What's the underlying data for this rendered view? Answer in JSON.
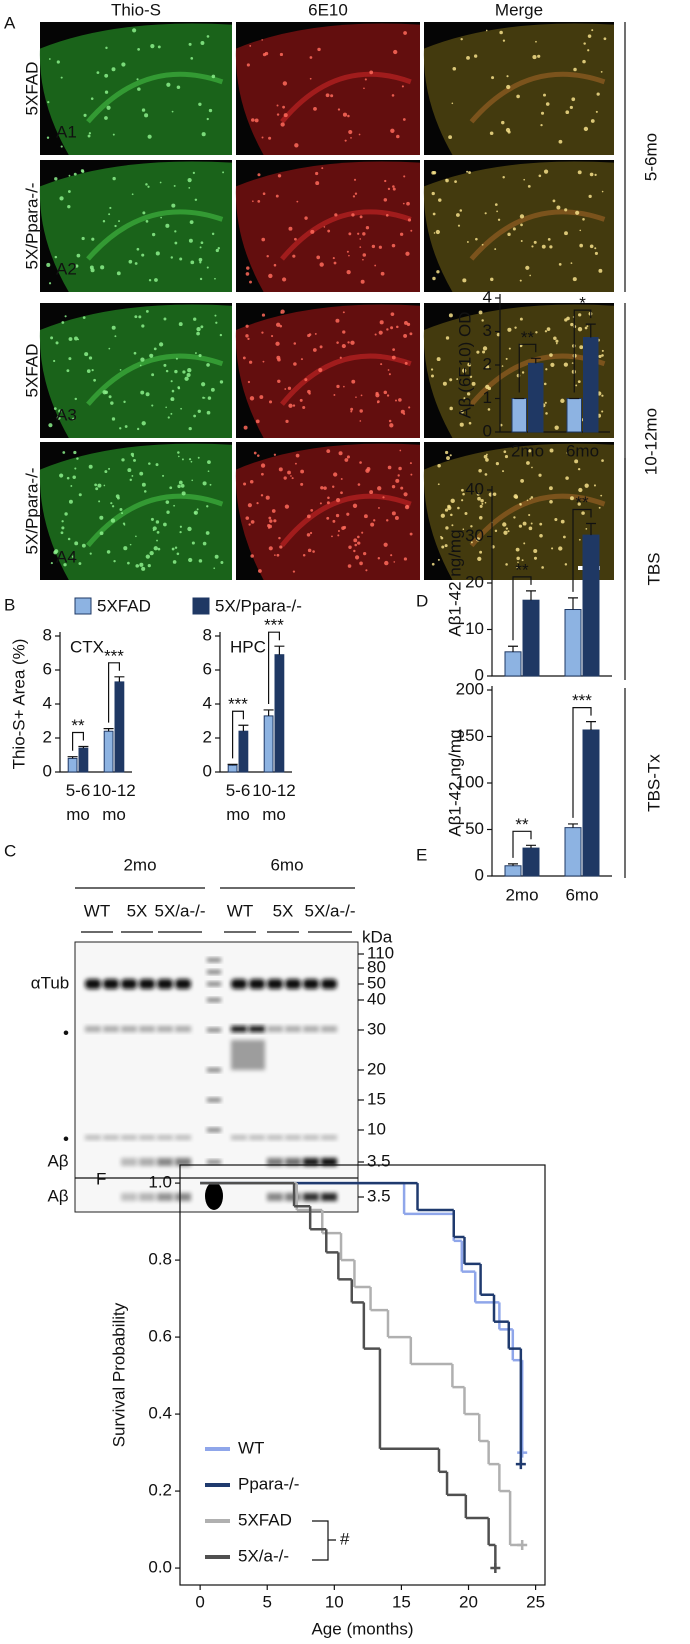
{
  "panel_a": {
    "label": "A",
    "columns": [
      "Thio-S",
      "6E10",
      "Merge"
    ],
    "rows": [
      {
        "genotype": "5XFAD",
        "id": "A1"
      },
      {
        "genotype": "5X/Ppara-/-",
        "id": "A2"
      },
      {
        "genotype": "5XFAD",
        "id": "A3"
      },
      {
        "genotype": "5X/Ppara-/-",
        "id": "A4"
      }
    ],
    "ages": [
      "5-6mo",
      "10-12mo"
    ]
  },
  "panel_c": {
    "label": "C",
    "ages": [
      "2mo",
      "6mo"
    ],
    "lanes": [
      "WT",
      "5X",
      "5X/a-/-",
      "WT",
      "5X",
      "5X/a-/-"
    ],
    "unit": "kDa",
    "markers": [
      "110",
      "80",
      "50",
      "40",
      "30",
      "20",
      "15",
      "10",
      "3.5",
      "3.5"
    ],
    "bands": [
      "αTub",
      "•",
      "•",
      "Aβ",
      "Aβ"
    ]
  },
  "labels": [
    "B",
    "D",
    "E",
    "F"
  ],
  "chart_data": [
    {
      "type": "bar",
      "title": "CTX",
      "ylabel": "Thio-S+ Area (%)",
      "categories": [
        "5-6 mo",
        "10-12 mo"
      ],
      "series": [
        {
          "name": "5XFAD",
          "color": "#8db3e2",
          "values": [
            0.8,
            2.4
          ],
          "errors": [
            0.1,
            0.15
          ]
        },
        {
          "name": "5X/Ppara-/-",
          "color": "#1f3864",
          "values": [
            1.4,
            5.3
          ],
          "errors": [
            0.1,
            0.3
          ]
        }
      ],
      "ylim": [
        0,
        8
      ],
      "yticks": [
        0,
        2,
        4,
        6,
        8
      ],
      "significance": [
        "**",
        "***"
      ]
    },
    {
      "type": "bar",
      "title": "HPC",
      "categories": [
        "5-6 mo",
        "10-12 mo"
      ],
      "series": [
        {
          "color": "#8db3e2",
          "values": [
            0.4,
            3.3
          ],
          "errors": [
            0.05,
            0.35
          ]
        },
        {
          "color": "#1f3864",
          "values": [
            2.4,
            6.9
          ],
          "errors": [
            0.35,
            0.5
          ]
        }
      ],
      "ylim": [
        0,
        8
      ],
      "yticks": [
        0,
        2,
        4,
        6,
        8
      ],
      "significance": [
        "***",
        "***"
      ]
    },
    {
      "type": "bar",
      "ylabel": "Aβ (6E10) OD",
      "categories": [
        "2mo",
        "6mo"
      ],
      "series": [
        {
          "color": "#8db3e2",
          "values": [
            1,
            1
          ],
          "errors": [
            0,
            0
          ]
        },
        {
          "color": "#1f3864",
          "values": [
            2.05,
            2.82
          ],
          "errors": [
            0.15,
            0.4
          ]
        }
      ],
      "ylim": [
        0,
        4
      ],
      "yticks": [
        0,
        1,
        2,
        3,
        4
      ],
      "significance": [
        "**",
        "*"
      ]
    },
    {
      "type": "bar",
      "ylabel": "Aβ1-42 ng/mg",
      "side": "TBS",
      "series": [
        {
          "color": "#8db3e2",
          "values": [
            5.2,
            14.3
          ],
          "errors": [
            1.2,
            2.5
          ]
        },
        {
          "color": "#1f3864",
          "values": [
            16.3,
            30.3
          ],
          "errors": [
            2,
            2.5
          ]
        }
      ],
      "ylim": [
        0,
        40
      ],
      "yticks": [
        0,
        10,
        20,
        30,
        40
      ],
      "significance": [
        "**",
        "**"
      ]
    },
    {
      "type": "bar",
      "ylabel": "Aβ1-42 ng/mg",
      "side": "TBS-Tx",
      "categories": [
        "2mo",
        "6mo"
      ],
      "series": [
        {
          "color": "#8db3e2",
          "values": [
            11,
            52
          ],
          "errors": [
            2,
            4
          ]
        },
        {
          "color": "#1f3864",
          "values": [
            30,
            157
          ],
          "errors": [
            3,
            9
          ]
        }
      ],
      "ylim": [
        0,
        200
      ],
      "yticks": [
        0,
        50,
        100,
        150,
        200
      ],
      "significance": [
        "**",
        "***"
      ]
    },
    {
      "type": "step",
      "xlabel": "Age (months)",
      "ylabel": "Survival Probability",
      "annotation": "#",
      "xlim": [
        -1.5,
        25.7
      ],
      "xticks": [
        0,
        5,
        10,
        15,
        20,
        25
      ],
      "ylim": [
        -0.044,
        1.047
      ],
      "yticks": [
        {
          "value": 0,
          "label": "0.0"
        },
        0.2,
        0.4,
        0.6,
        0.8,
        {
          "value": 1,
          "label": "1.0"
        }
      ],
      "series": [
        {
          "name": "WT",
          "color": "#8fa6ea",
          "x": [
            0,
            15.2,
            18.9,
            19.5,
            20.5,
            22.3,
            23.3,
            24
          ],
          "values": [
            1,
            0.92,
            0.85,
            0.77,
            0.69,
            0.62,
            0.54,
            0.3
          ]
        },
        {
          "name": "Ppara-/-",
          "color": "#1f3a6e",
          "x": [
            0,
            16.2,
            18.9,
            19.7,
            20.9,
            21.9,
            23,
            23.9
          ],
          "values": [
            1,
            0.93,
            0.86,
            0.79,
            0.71,
            0.64,
            0.57,
            0.27
          ]
        },
        {
          "name": "5XFAD",
          "color": "#b0b0b0",
          "x": [
            0,
            7.2,
            9.1,
            10.5,
            11.5,
            12.7,
            14,
            15.7,
            18.8,
            19.7,
            20.8,
            21.5,
            22.3,
            23.1,
            24
          ],
          "values": [
            1,
            0.93,
            0.87,
            0.8,
            0.73,
            0.67,
            0.6,
            0.53,
            0.47,
            0.4,
            0.33,
            0.27,
            0.2,
            0.06,
            0.06
          ]
        },
        {
          "name": "5X/a-/-",
          "color": "#505050",
          "x": [
            0,
            7,
            8.2,
            9.4,
            10.3,
            11.3,
            12.2,
            13.4,
            17.8,
            18.4,
            19.8,
            21.5,
            22
          ],
          "values": [
            1,
            0.94,
            0.88,
            0.82,
            0.75,
            0.69,
            0.57,
            0.31,
            0.25,
            0.19,
            0.13,
            0.06,
            0
          ]
        }
      ]
    }
  ]
}
